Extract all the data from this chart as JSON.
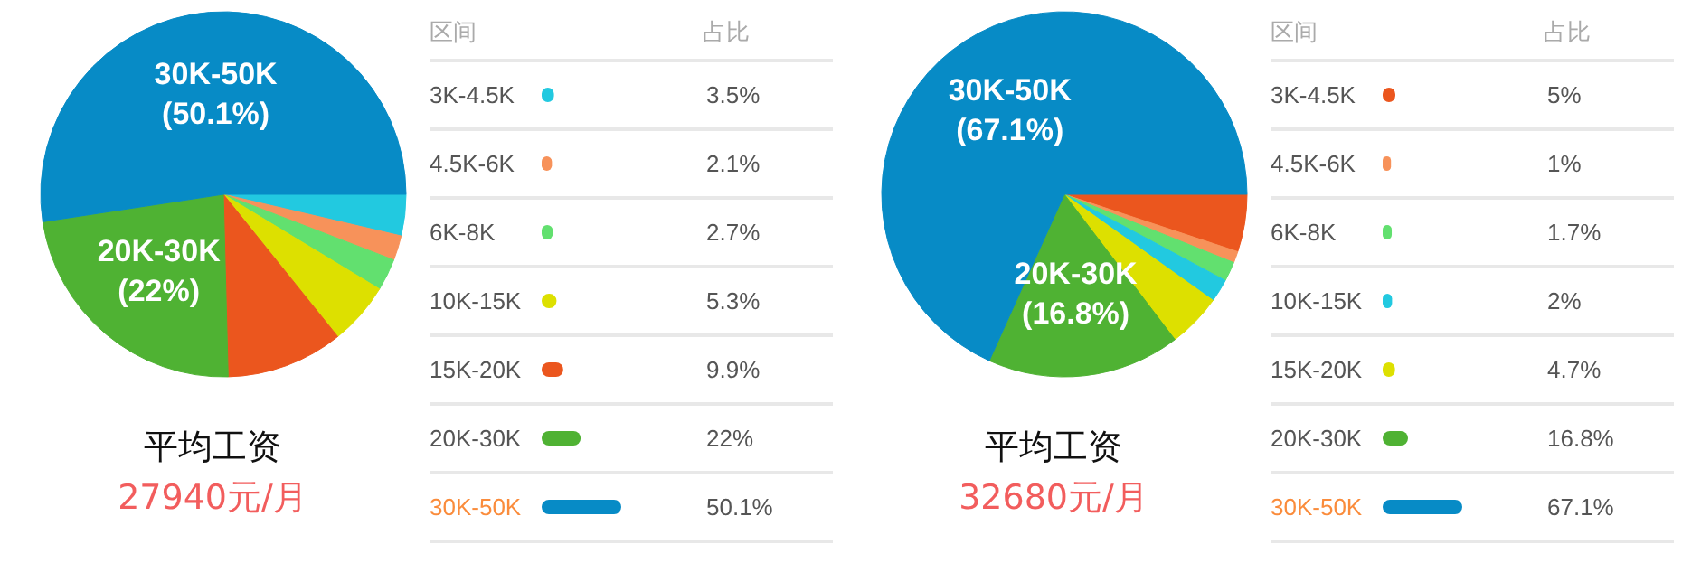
{
  "chart_data": [
    {
      "type": "pie",
      "title": "平均工资",
      "subtitle": "27940元/月",
      "legend": "right",
      "annotations": [
        "区间",
        "占比",
        {
          "text": "(50.1%)",
          "x": "30K-50K"
        },
        {
          "text": "(22%)",
          "x": "20K-30K"
        }
      ],
      "categories": [
        "3K-4.5K",
        "4.5K-6K",
        "6K-8K",
        "10K-15K",
        "15K-20K",
        "20K-30K",
        "30K-50K"
      ],
      "values": [
        3.5,
        2.1,
        2.7,
        5.3,
        9.9,
        22,
        50.1
      ],
      "value_labels": [
        "3.5%",
        "2.1%",
        "2.7%",
        "5.3%",
        "9.9%",
        "22%",
        "50.1%"
      ],
      "colors": [
        "#22c9e0",
        "#f7925a",
        "#62e06f",
        "#dde000",
        "#eb561e",
        "#4fb233",
        "#078bc6"
      ]
    },
    {
      "type": "pie",
      "title": "平均工资",
      "subtitle": "32680元/月",
      "legend": "right",
      "annotations": [
        "区间",
        "占比",
        {
          "text": "(67.1%)",
          "x": "30K-50K"
        },
        {
          "text": "(16.8%)",
          "x": "20K-30K"
        }
      ],
      "categories": [
        "3K-4.5K",
        "4.5K-6K",
        "6K-8K",
        "10K-15K",
        "15K-20K",
        "20K-30K",
        "30K-50K"
      ],
      "values": [
        5,
        1,
        1.7,
        2,
        4.7,
        16.8,
        67.1
      ],
      "value_labels": [
        "5%",
        "1%",
        "1.7%",
        "2%",
        "4.7%",
        "16.8%",
        "67.1%"
      ],
      "colors": [
        "#eb561e",
        "#f7925a",
        "#62e06f",
        "#22c9e0",
        "#dde000",
        "#4fb233",
        "#078bc6"
      ]
    }
  ]
}
